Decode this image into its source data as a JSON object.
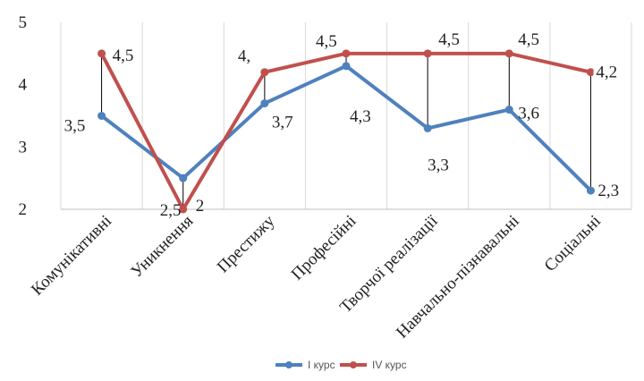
{
  "chart_data": {
    "type": "line",
    "categories": [
      "Комунікативні",
      "Уникнення",
      "Престижу",
      "Професійні",
      "Творчої реалізації",
      "Навчально-пізнавальні",
      "Соціальні"
    ],
    "ylim": [
      2,
      5
    ],
    "yticks": [
      "2",
      "3",
      "4",
      "5"
    ],
    "grid": "vertical",
    "legend_position": "bottom",
    "series": [
      {
        "name": "I курс",
        "color": "#4f81bd",
        "values": [
          3.5,
          2.5,
          3.7,
          4.3,
          3.3,
          3.6,
          2.3
        ],
        "labels": [
          "3,5",
          "2,5",
          "3,7",
          "4,3",
          "3,3",
          "3,6",
          "2,3"
        ]
      },
      {
        "name": "IV курс",
        "color": "#c0504d",
        "values": [
          4.5,
          2,
          4.2,
          4.5,
          4.5,
          4.5,
          4.2
        ],
        "labels": [
          "4,5",
          "2",
          "4,",
          "4,5",
          "4,5",
          "4,5",
          "4,2"
        ]
      }
    ]
  }
}
